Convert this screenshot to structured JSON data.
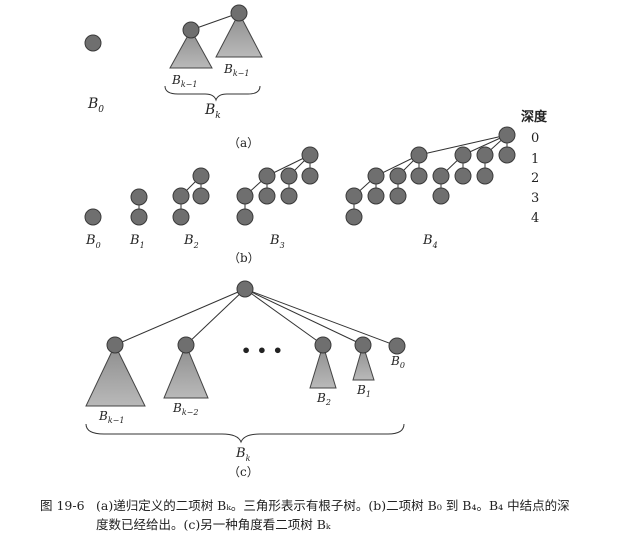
{
  "part_a": {
    "label": "（a）",
    "b0": "B",
    "b0_sub": "0",
    "bk1_left": "B",
    "bk1_left_sub": "k−1",
    "bk1_right": "B",
    "bk1_right_sub": "k−1",
    "bk": "B",
    "bk_sub": "k"
  },
  "part_b": {
    "label": "（b）",
    "depth_title": "深度",
    "depths": [
      "0",
      "1",
      "2",
      "3",
      "4"
    ],
    "trees": [
      {
        "name": "B",
        "sub": "0"
      },
      {
        "name": "B",
        "sub": "1"
      },
      {
        "name": "B",
        "sub": "2"
      },
      {
        "name": "B",
        "sub": "3"
      },
      {
        "name": "B",
        "sub": "4"
      }
    ]
  },
  "part_c": {
    "label": "（c）",
    "ellipsis": "• • •",
    "bk1": "B",
    "bk1_sub": "k−1",
    "bk2": "B",
    "bk2_sub": "k−2",
    "b2": "B",
    "b2_sub": "2",
    "b1": "B",
    "b1_sub": "1",
    "b0": "B",
    "b0_sub": "0",
    "bk": "B",
    "bk_sub": "k"
  },
  "caption": {
    "number": "图 19-6",
    "line1": "(a)递归定义的二项树 Bₖ。三角形表示有根子树。(b)二项树 B₀ 到 B₄。B₄ 中结点的深",
    "line2": "度数已经给出。(c)另一种角度看二项树 Bₖ"
  },
  "colors": {
    "node": "#6f6f6f",
    "node_stroke": "#3a3a3a",
    "triangle": "#a9a9a9",
    "edge": "#333333"
  }
}
